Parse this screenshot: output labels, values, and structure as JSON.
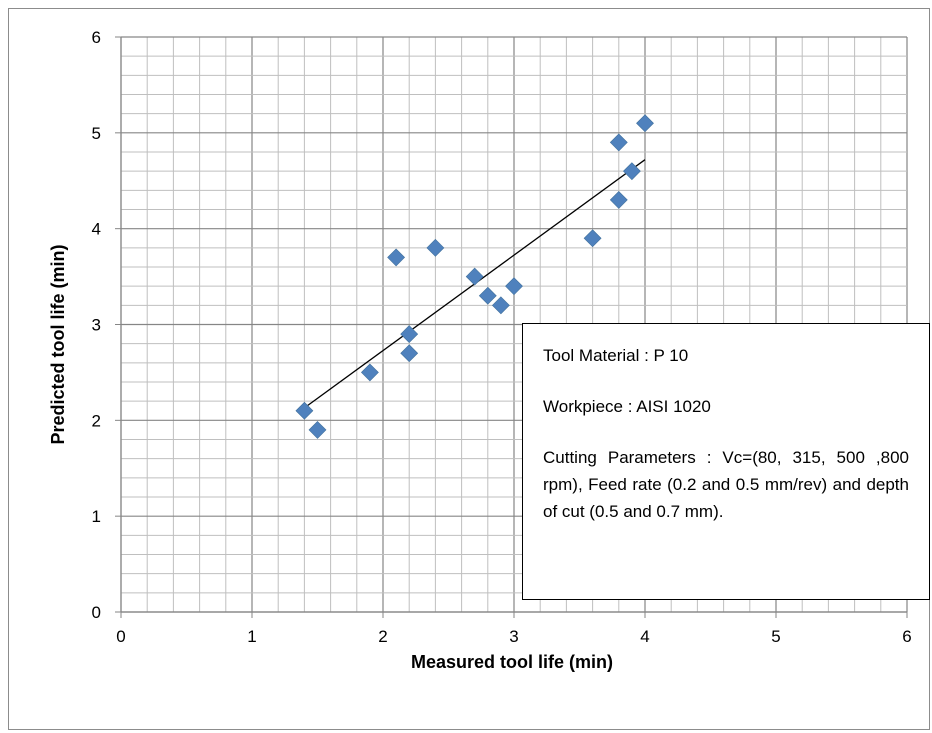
{
  "chart_data": {
    "type": "scatter",
    "xlabel": "Measured tool life (min)",
    "ylabel": "Predicted tool life (min)",
    "xlim": [
      0,
      6
    ],
    "ylim": [
      0,
      6
    ],
    "x_ticks": [
      "0",
      "1",
      "2",
      "3",
      "4",
      "5",
      "6"
    ],
    "y_ticks": [
      "0",
      "1",
      "2",
      "3",
      "4",
      "5",
      "6"
    ],
    "grid": true,
    "minor_grid": true,
    "marker": "diamond",
    "marker_color": "#4f81bd",
    "points": [
      {
        "x": 1.4,
        "y": 2.1
      },
      {
        "x": 1.5,
        "y": 1.9
      },
      {
        "x": 1.9,
        "y": 2.5
      },
      {
        "x": 2.1,
        "y": 3.7
      },
      {
        "x": 2.2,
        "y": 2.9
      },
      {
        "x": 2.2,
        "y": 2.7
      },
      {
        "x": 2.4,
        "y": 3.8
      },
      {
        "x": 2.7,
        "y": 3.5
      },
      {
        "x": 2.8,
        "y": 3.3
      },
      {
        "x": 2.9,
        "y": 3.2
      },
      {
        "x": 3.0,
        "y": 3.4
      },
      {
        "x": 3.6,
        "y": 3.9
      },
      {
        "x": 3.8,
        "y": 4.9
      },
      {
        "x": 3.8,
        "y": 4.3
      },
      {
        "x": 3.9,
        "y": 4.6
      },
      {
        "x": 4.0,
        "y": 5.1
      }
    ],
    "trendline": {
      "x": [
        1.4,
        4.0
      ],
      "y": [
        2.13,
        4.72
      ],
      "color": "#000000"
    },
    "annotation": {
      "tool_material": "Tool Material : P 10",
      "workpiece": "Workpiece : AISI 1020",
      "cutting_parameters": "Cutting Parameters : Vc=(80, 315, 500 ,800 rpm), Feed rate (0.2 and 0.5 mm/rev) and depth of cut (0.5 and 0.7 mm)."
    }
  }
}
